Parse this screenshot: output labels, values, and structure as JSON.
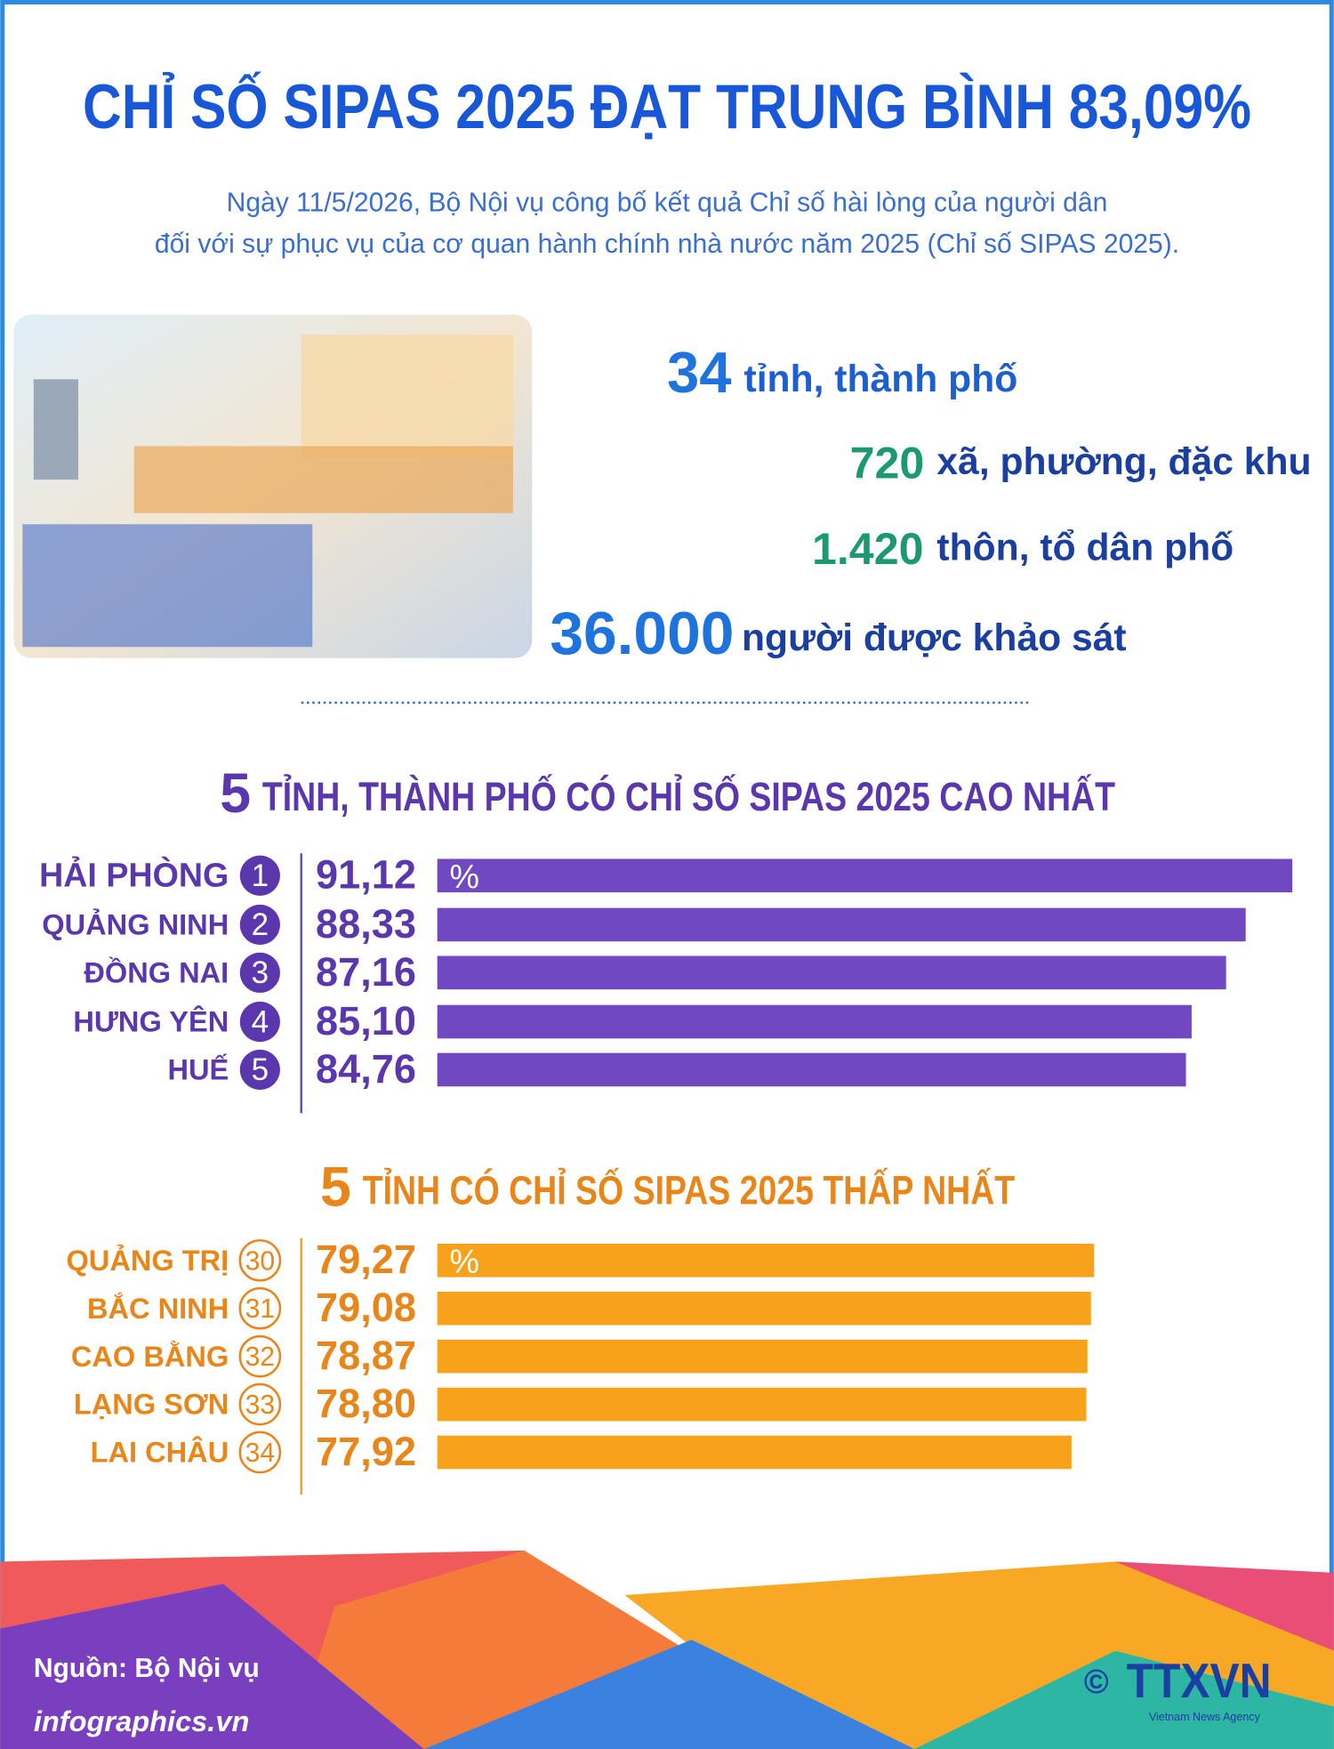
{
  "title": "CHỈ SỐ SIPAS 2025 ĐẠT TRUNG BÌNH 83,09%",
  "subtitle": [
    "Ngày 11/5/2026, Bộ Nội vụ công bố kết quả Chỉ số hài lòng của người dân",
    "đối với sự phục vụ của cơ quan hành chính nhà nước năm 2025 (Chỉ số SIPAS 2025)."
  ],
  "stats": [
    {
      "number": "34",
      "label": "tỉnh, thành phố"
    },
    {
      "number": "720",
      "label": "xã, phường, đặc khu"
    },
    {
      "number": "1.420",
      "label": "thôn, tổ dân phố"
    },
    {
      "number": "36.000",
      "label": "người được khảo sát"
    }
  ],
  "chart_data": [
    {
      "type": "bar",
      "orientation": "horizontal",
      "title_number": "5",
      "title": "TỈNH, THÀNH PHỐ CÓ CHỈ SỐ SIPAS 2025 CAO NHẤT",
      "categories": [
        "HẢI PHÒNG",
        "QUẢNG NINH",
        "ĐỒNG NAI",
        "HƯNG YÊN",
        "HUẾ"
      ],
      "ranks": [
        "1",
        "2",
        "3",
        "4",
        "5"
      ],
      "rank_style": "filled",
      "values": [
        91.12,
        88.33,
        87.16,
        85.1,
        84.76
      ],
      "value_labels": [
        "91,12",
        "88,33",
        "87,16",
        "85,10",
        "84,76"
      ],
      "unit": "%",
      "xlim": [
        40,
        92
      ],
      "color": "#7049c2",
      "text_color": "#5b37ad"
    },
    {
      "type": "bar",
      "orientation": "horizontal",
      "title_number": "5",
      "title": "TỈNH CÓ CHỈ SỐ SIPAS 2025 THẤP NHẤT",
      "categories": [
        "QUẢNG TRỊ",
        "BẮC NINH",
        "CAO BẰNG",
        "LẠNG SƠN",
        "LAI CHÂU"
      ],
      "ranks": [
        "30",
        "31",
        "32",
        "33",
        "34"
      ],
      "rank_style": "outline",
      "values": [
        79.27,
        79.08,
        78.87,
        78.8,
        77.92
      ],
      "value_labels": [
        "79,27",
        "79,08",
        "78,87",
        "78,80",
        "77,92"
      ],
      "unit": "%",
      "xlim": [
        40,
        92
      ],
      "color": "#f8a21c",
      "text_color": "#e8861a"
    }
  ],
  "footer": {
    "source": "Nguồn: Bộ Nội vụ",
    "website": "infographics.vn",
    "copyright": "©",
    "logo": "TTXVN",
    "agency": "Vietnam News Agency"
  }
}
